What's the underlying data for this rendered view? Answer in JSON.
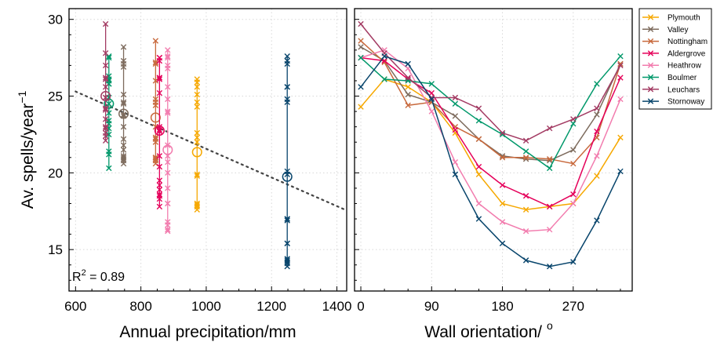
{
  "chart_data": [
    {
      "type": "scatter",
      "title": "",
      "xlabel": "Annual precipitation/mm",
      "ylabel": "Av. spells/year",
      "ylabel_exponent": "−1",
      "xlim": [
        580,
        1430
      ],
      "ylim": [
        12.3,
        30.7
      ],
      "xticks": [
        600,
        800,
        1000,
        1200,
        1400
      ],
      "yticks": [
        15,
        20,
        25,
        30
      ],
      "grid": true,
      "annotation": {
        "base": "R",
        "exp": "2",
        "rest": " = 0.89"
      },
      "trend": {
        "x": [
          600,
          1430
        ],
        "y": [
          25.3,
          17.55
        ]
      },
      "stations": [
        {
          "name": "Plymouth",
          "color": "#f6a800",
          "x": 972,
          "mean": 21.35,
          "values": [
            24.3,
            26.1,
            25.6,
            24.6,
            22.6,
            19.9,
            18.0,
            17.6,
            17.8,
            18.0,
            19.8,
            22.3,
            25.9,
            25.1,
            22.0,
            17.9
          ]
        },
        {
          "name": "Valley",
          "color": "#7d6b5d",
          "x": 747,
          "mean": 23.85,
          "values": [
            28.2,
            27.3,
            25.1,
            24.6,
            23.7,
            22.2,
            21.1,
            20.9,
            20.8,
            21.5,
            23.8,
            27.1,
            26.9,
            24.5,
            23.0,
            21.8,
            21.0,
            20.6
          ]
        },
        {
          "name": "Nottingham",
          "color": "#c8693c",
          "x": 845,
          "mean": 23.6,
          "values": [
            28.6,
            27.2,
            24.4,
            24.6,
            23.0,
            22.2,
            21.0,
            21.0,
            20.9,
            20.6,
            22.3,
            27.1,
            26.0,
            24.8,
            22.0,
            20.8
          ]
        },
        {
          "name": "Aldergrove",
          "color": "#e5005a",
          "x": 857,
          "mean": 22.75,
          "values": [
            27.5,
            27.3,
            26.1,
            25.2,
            22.8,
            20.4,
            19.2,
            18.5,
            17.8,
            18.6,
            22.7,
            26.2,
            27.5,
            26.2,
            23.0,
            21.1,
            19.5,
            18.9,
            18.3
          ]
        },
        {
          "name": "Heathrow",
          "color": "#f27cae",
          "x": 882,
          "mean": 21.5,
          "values": [
            27.5,
            28.0,
            26.8,
            24.0,
            20.7,
            18.0,
            16.8,
            16.2,
            16.3,
            18.0,
            21.1,
            24.8,
            27.6,
            27.0,
            25.6,
            23.9,
            21.8,
            20.0,
            19.0,
            16.6
          ]
        },
        {
          "name": "Boulmer",
          "color": "#00986a",
          "x": 702,
          "mean": 24.5,
          "values": [
            27.5,
            26.1,
            26.0,
            25.8,
            24.5,
            23.4,
            22.5,
            21.4,
            20.3,
            23.2,
            25.8,
            27.6,
            26.3,
            24.9,
            23.9,
            22.9,
            21.2
          ]
        },
        {
          "name": "Leuchars",
          "color": "#a33b63",
          "x": 692,
          "mean": 25.0,
          "values": [
            29.7,
            27.8,
            26.2,
            24.9,
            24.9,
            24.2,
            22.6,
            22.1,
            22.9,
            23.5,
            24.2,
            27.0,
            26.1,
            25.6,
            24.1,
            23.0,
            22.4
          ]
        },
        {
          "name": "Stornoway",
          "color": "#08456c",
          "x": 1248,
          "mean": 19.75,
          "values": [
            25.6,
            27.6,
            27.1,
            24.8,
            19.9,
            17.0,
            15.4,
            14.3,
            13.9,
            14.2,
            16.9,
            20.1,
            27.3,
            25.6,
            24.6,
            17.0,
            15.4,
            14.4,
            14.1
          ]
        }
      ]
    },
    {
      "type": "line",
      "title": "",
      "xlabel": "Wall orientation/",
      "xlabel_exponent": "o",
      "ylabel": "",
      "xlim": [
        -8,
        345
      ],
      "ylim": [
        12.3,
        30.7
      ],
      "xticks": [
        0,
        90,
        180,
        270
      ],
      "grid": true,
      "legend_position": "outside-top-right",
      "x": [
        0,
        30,
        60,
        90,
        120,
        150,
        180,
        210,
        240,
        270,
        300,
        330
      ],
      "series": [
        {
          "name": "Plymouth",
          "color": "#f6a800",
          "values": [
            24.3,
            26.1,
            25.6,
            24.6,
            22.6,
            19.9,
            18.0,
            17.6,
            17.8,
            18.0,
            19.8,
            22.3
          ]
        },
        {
          "name": "Valley",
          "color": "#7d6b5d",
          "values": [
            28.2,
            27.3,
            25.1,
            24.6,
            23.7,
            22.2,
            21.1,
            20.9,
            20.8,
            21.5,
            23.8,
            27.1
          ]
        },
        {
          "name": "Nottingham",
          "color": "#c8693c",
          "values": [
            28.6,
            27.2,
            24.4,
            24.6,
            23.0,
            22.2,
            21.0,
            21.0,
            20.9,
            20.6,
            22.3,
            27.1
          ]
        },
        {
          "name": "Aldergrove",
          "color": "#e5005a",
          "values": [
            27.5,
            27.3,
            26.1,
            25.2,
            22.8,
            20.4,
            19.2,
            18.5,
            17.8,
            18.6,
            22.7,
            26.2
          ]
        },
        {
          "name": "Heathrow",
          "color": "#f27cae",
          "values": [
            27.5,
            28.0,
            26.8,
            24.0,
            20.7,
            18.0,
            16.8,
            16.2,
            16.3,
            18.0,
            21.1,
            24.8
          ]
        },
        {
          "name": "Boulmer",
          "color": "#00986a",
          "values": [
            27.5,
            26.1,
            26.0,
            25.8,
            24.5,
            23.4,
            22.5,
            21.4,
            20.3,
            23.2,
            25.8,
            27.6
          ]
        },
        {
          "name": "Leuchars",
          "color": "#a33b63",
          "values": [
            29.7,
            27.8,
            26.2,
            24.9,
            24.9,
            24.2,
            22.6,
            22.1,
            22.9,
            23.5,
            24.2,
            27.0
          ]
        },
        {
          "name": "Stornoway",
          "color": "#08456c",
          "values": [
            25.6,
            27.6,
            27.1,
            24.8,
            19.9,
            17.0,
            15.4,
            14.3,
            13.9,
            14.2,
            16.9,
            20.1
          ]
        }
      ]
    }
  ]
}
